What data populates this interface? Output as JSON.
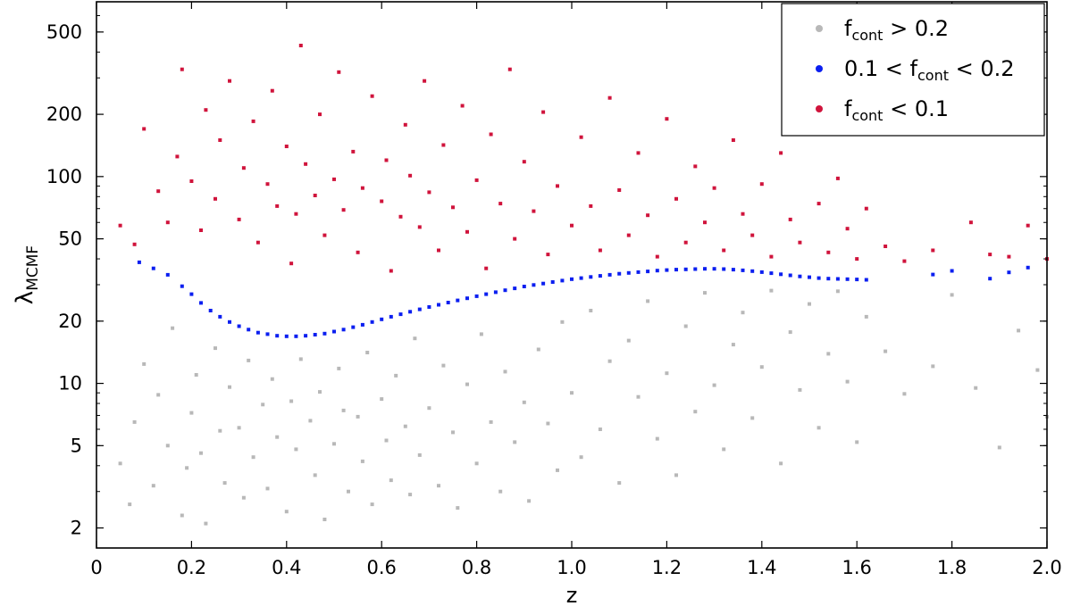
{
  "chart_data": {
    "type": "scatter",
    "xlabel": "z",
    "ylabel": {
      "base": "λ",
      "sub": "MCMF"
    },
    "xlim": [
      0.0,
      2.0
    ],
    "ylim": [
      1.6,
      700
    ],
    "yscale": "log",
    "x_ticks": [
      0.0,
      0.2,
      0.4,
      0.6,
      0.8,
      1.0,
      1.2,
      1.4,
      1.6,
      1.8,
      2.0
    ],
    "x_tick_labels": [
      "0",
      "0.2",
      "0.4",
      "0.6",
      "0.8",
      "1.0",
      "1.2",
      "1.4",
      "1.6",
      "1.8",
      "2.0"
    ],
    "y_ticks": [
      2,
      5,
      10,
      20,
      50,
      100,
      200,
      500
    ],
    "y_tick_labels": [
      "2",
      "5",
      "10",
      "20",
      "50",
      "100",
      "200",
      "500"
    ],
    "grid": false,
    "legend_position": "top-right",
    "series": [
      {
        "name": "f_cont > 0.2",
        "label_parts": {
          "pre": "f",
          "sub": "cont",
          "post": " > 0.2"
        },
        "color": "#b8b8b8",
        "points": [
          [
            0.05,
            4.1
          ],
          [
            0.07,
            2.6
          ],
          [
            0.08,
            6.5
          ],
          [
            0.1,
            12.4
          ],
          [
            0.12,
            3.2
          ],
          [
            0.13,
            8.8
          ],
          [
            0.15,
            5.0
          ],
          [
            0.16,
            18.5
          ],
          [
            0.18,
            2.3
          ],
          [
            0.19,
            3.9
          ],
          [
            0.2,
            7.2
          ],
          [
            0.21,
            11.0
          ],
          [
            0.22,
            4.6
          ],
          [
            0.23,
            2.1
          ],
          [
            0.25,
            14.8
          ],
          [
            0.26,
            5.9
          ],
          [
            0.27,
            3.3
          ],
          [
            0.28,
            9.6
          ],
          [
            0.3,
            6.1
          ],
          [
            0.31,
            2.8
          ],
          [
            0.32,
            12.9
          ],
          [
            0.33,
            4.4
          ],
          [
            0.35,
            7.9
          ],
          [
            0.36,
            3.1
          ],
          [
            0.37,
            10.5
          ],
          [
            0.38,
            5.5
          ],
          [
            0.4,
            2.4
          ],
          [
            0.41,
            8.2
          ],
          [
            0.42,
            4.8
          ],
          [
            0.43,
            13.1
          ],
          [
            0.45,
            6.6
          ],
          [
            0.46,
            3.6
          ],
          [
            0.47,
            9.1
          ],
          [
            0.48,
            2.2
          ],
          [
            0.5,
            5.1
          ],
          [
            0.51,
            11.8
          ],
          [
            0.52,
            7.4
          ],
          [
            0.53,
            3.0
          ],
          [
            0.55,
            6.9
          ],
          [
            0.56,
            4.2
          ],
          [
            0.57,
            14.1
          ],
          [
            0.58,
            2.6
          ],
          [
            0.6,
            8.4
          ],
          [
            0.61,
            5.3
          ],
          [
            0.62,
            3.4
          ],
          [
            0.63,
            10.9
          ],
          [
            0.65,
            6.2
          ],
          [
            0.66,
            2.9
          ],
          [
            0.67,
            16.5
          ],
          [
            0.68,
            4.5
          ],
          [
            0.7,
            7.6
          ],
          [
            0.72,
            3.2
          ],
          [
            0.73,
            12.2
          ],
          [
            0.75,
            5.8
          ],
          [
            0.76,
            2.5
          ],
          [
            0.78,
            9.9
          ],
          [
            0.8,
            4.1
          ],
          [
            0.81,
            17.3
          ],
          [
            0.83,
            6.5
          ],
          [
            0.85,
            3.0
          ],
          [
            0.86,
            11.4
          ],
          [
            0.88,
            5.2
          ],
          [
            0.9,
            8.1
          ],
          [
            0.91,
            2.7
          ],
          [
            0.93,
            14.6
          ],
          [
            0.95,
            6.4
          ],
          [
            0.97,
            3.8
          ],
          [
            0.98,
            19.8
          ],
          [
            1.0,
            9.0
          ],
          [
            1.02,
            4.4
          ],
          [
            1.04,
            22.5
          ],
          [
            1.06,
            6.0
          ],
          [
            1.08,
            12.8
          ],
          [
            1.1,
            3.3
          ],
          [
            1.12,
            16.1
          ],
          [
            1.14,
            8.6
          ],
          [
            1.16,
            25.0
          ],
          [
            1.18,
            5.4
          ],
          [
            1.2,
            11.2
          ],
          [
            1.22,
            3.6
          ],
          [
            1.24,
            18.9
          ],
          [
            1.26,
            7.3
          ],
          [
            1.28,
            27.4
          ],
          [
            1.3,
            9.8
          ],
          [
            1.32,
            4.8
          ],
          [
            1.34,
            15.4
          ],
          [
            1.36,
            22.0
          ],
          [
            1.38,
            6.8
          ],
          [
            1.4,
            12.0
          ],
          [
            1.42,
            28.1
          ],
          [
            1.44,
            4.1
          ],
          [
            1.46,
            17.7
          ],
          [
            1.48,
            9.3
          ],
          [
            1.5,
            24.2
          ],
          [
            1.52,
            6.1
          ],
          [
            1.54,
            13.9
          ],
          [
            1.56,
            27.9
          ],
          [
            1.58,
            10.2
          ],
          [
            1.6,
            5.2
          ],
          [
            1.62,
            21.0
          ],
          [
            1.66,
            14.3
          ],
          [
            1.7,
            8.9
          ],
          [
            1.76,
            12.1
          ],
          [
            1.8,
            26.8
          ],
          [
            1.85,
            9.5
          ],
          [
            1.9,
            4.9
          ],
          [
            1.94,
            18.0
          ],
          [
            1.98,
            11.6
          ],
          [
            2.0,
            6.9
          ]
        ]
      },
      {
        "name": "0.1 < f_cont < 0.2",
        "label_parts": {
          "pre": "0.1 < f",
          "sub": "cont",
          "post": " < 0.2"
        },
        "color": "#0b1ff0",
        "points": [
          [
            0.09,
            38.5
          ],
          [
            0.12,
            36.0
          ],
          [
            0.15,
            33.5
          ],
          [
            0.18,
            29.5
          ],
          [
            0.2,
            27.0
          ],
          [
            0.22,
            24.5
          ],
          [
            0.24,
            22.5
          ],
          [
            0.26,
            21.0
          ],
          [
            0.28,
            19.8
          ],
          [
            0.3,
            18.9
          ],
          [
            0.32,
            18.2
          ],
          [
            0.34,
            17.6
          ],
          [
            0.36,
            17.3
          ],
          [
            0.38,
            17.0
          ],
          [
            0.4,
            16.9
          ],
          [
            0.42,
            16.9
          ],
          [
            0.44,
            17.0
          ],
          [
            0.46,
            17.2
          ],
          [
            0.48,
            17.4
          ],
          [
            0.5,
            17.8
          ],
          [
            0.52,
            18.2
          ],
          [
            0.54,
            18.7
          ],
          [
            0.56,
            19.2
          ],
          [
            0.58,
            19.8
          ],
          [
            0.6,
            20.4
          ],
          [
            0.62,
            21.0
          ],
          [
            0.64,
            21.6
          ],
          [
            0.66,
            22.2
          ],
          [
            0.68,
            22.8
          ],
          [
            0.7,
            23.4
          ],
          [
            0.72,
            24.0
          ],
          [
            0.74,
            24.6
          ],
          [
            0.76,
            25.2
          ],
          [
            0.78,
            25.8
          ],
          [
            0.8,
            26.4
          ],
          [
            0.82,
            27.0
          ],
          [
            0.84,
            27.6
          ],
          [
            0.86,
            28.2
          ],
          [
            0.88,
            28.8
          ],
          [
            0.9,
            29.4
          ],
          [
            0.92,
            29.9
          ],
          [
            0.94,
            30.4
          ],
          [
            0.96,
            30.9
          ],
          [
            0.98,
            31.4
          ],
          [
            1.0,
            31.9
          ],
          [
            1.02,
            32.3
          ],
          [
            1.04,
            32.7
          ],
          [
            1.06,
            33.1
          ],
          [
            1.08,
            33.5
          ],
          [
            1.1,
            33.9
          ],
          [
            1.12,
            34.2
          ],
          [
            1.14,
            34.5
          ],
          [
            1.16,
            34.8
          ],
          [
            1.18,
            35.1
          ],
          [
            1.2,
            35.3
          ],
          [
            1.22,
            35.5
          ],
          [
            1.24,
            35.6
          ],
          [
            1.26,
            35.7
          ],
          [
            1.28,
            35.8
          ],
          [
            1.3,
            35.8
          ],
          [
            1.32,
            35.7
          ],
          [
            1.34,
            35.5
          ],
          [
            1.36,
            35.2
          ],
          [
            1.38,
            34.9
          ],
          [
            1.4,
            34.5
          ],
          [
            1.42,
            34.1
          ],
          [
            1.44,
            33.7
          ],
          [
            1.46,
            33.3
          ],
          [
            1.48,
            32.9
          ],
          [
            1.5,
            32.6
          ],
          [
            1.52,
            32.3
          ],
          [
            1.54,
            32.1
          ],
          [
            1.56,
            32.0
          ],
          [
            1.58,
            31.9
          ],
          [
            1.6,
            31.8
          ],
          [
            1.62,
            31.7
          ],
          [
            1.76,
            33.6
          ],
          [
            1.8,
            35.0
          ],
          [
            1.88,
            32.1
          ],
          [
            1.92,
            34.4
          ],
          [
            1.96,
            36.3
          ]
        ]
      },
      {
        "name": "f_cont < 0.1",
        "label_parts": {
          "pre": "f",
          "sub": "cont",
          "post": " < 0.1"
        },
        "color": "#d0143c",
        "points": [
          [
            0.05,
            58.0
          ],
          [
            0.08,
            47.0
          ],
          [
            0.1,
            170.0
          ],
          [
            0.13,
            85.0
          ],
          [
            0.15,
            60.0
          ],
          [
            0.17,
            125.0
          ],
          [
            0.18,
            330.0
          ],
          [
            0.2,
            95.0
          ],
          [
            0.22,
            55.0
          ],
          [
            0.23,
            210.0
          ],
          [
            0.25,
            78.0
          ],
          [
            0.26,
            150.0
          ],
          [
            0.28,
            290.0
          ],
          [
            0.3,
            62.0
          ],
          [
            0.31,
            110.0
          ],
          [
            0.33,
            185.0
          ],
          [
            0.34,
            48.0
          ],
          [
            0.36,
            92.0
          ],
          [
            0.37,
            260.0
          ],
          [
            0.38,
            72.0
          ],
          [
            0.4,
            140.0
          ],
          [
            0.41,
            38.0
          ],
          [
            0.42,
            66.0
          ],
          [
            0.43,
            430.0
          ],
          [
            0.44,
            115.0
          ],
          [
            0.46,
            81.0
          ],
          [
            0.47,
            200.0
          ],
          [
            0.48,
            52.0
          ],
          [
            0.5,
            97.0
          ],
          [
            0.51,
            320.0
          ],
          [
            0.52,
            69.0
          ],
          [
            0.54,
            132.0
          ],
          [
            0.55,
            43.0
          ],
          [
            0.56,
            88.0
          ],
          [
            0.58,
            245.0
          ],
          [
            0.6,
            76.0
          ],
          [
            0.61,
            120.0
          ],
          [
            0.62,
            35.0
          ],
          [
            0.64,
            64.0
          ],
          [
            0.65,
            178.0
          ],
          [
            0.66,
            101.0
          ],
          [
            0.68,
            57.0
          ],
          [
            0.69,
            290.0
          ],
          [
            0.7,
            84.0
          ],
          [
            0.72,
            44.0
          ],
          [
            0.73,
            142.0
          ],
          [
            0.75,
            71.0
          ],
          [
            0.77,
            220.0
          ],
          [
            0.78,
            54.0
          ],
          [
            0.8,
            96.0
          ],
          [
            0.82,
            36.0
          ],
          [
            0.83,
            160.0
          ],
          [
            0.85,
            74.0
          ],
          [
            0.87,
            330.0
          ],
          [
            0.88,
            50.0
          ],
          [
            0.9,
            118.0
          ],
          [
            0.92,
            68.0
          ],
          [
            0.94,
            205.0
          ],
          [
            0.95,
            42.0
          ],
          [
            0.97,
            90.0
          ],
          [
            1.0,
            58.0
          ],
          [
            1.02,
            155.0
          ],
          [
            1.04,
            72.0
          ],
          [
            1.06,
            44.0
          ],
          [
            1.08,
            240.0
          ],
          [
            1.1,
            86.0
          ],
          [
            1.12,
            52.0
          ],
          [
            1.14,
            130.0
          ],
          [
            1.16,
            65.0
          ],
          [
            1.18,
            41.0
          ],
          [
            1.2,
            190.0
          ],
          [
            1.22,
            78.0
          ],
          [
            1.24,
            48.0
          ],
          [
            1.26,
            112.0
          ],
          [
            1.28,
            60.0
          ],
          [
            1.3,
            88.0
          ],
          [
            1.32,
            44.0
          ],
          [
            1.34,
            150.0
          ],
          [
            1.36,
            66.0
          ],
          [
            1.38,
            52.0
          ],
          [
            1.4,
            92.0
          ],
          [
            1.42,
            41.0
          ],
          [
            1.44,
            130.0
          ],
          [
            1.46,
            62.0
          ],
          [
            1.48,
            48.0
          ],
          [
            1.5,
            190.0
          ],
          [
            1.52,
            74.0
          ],
          [
            1.54,
            43.0
          ],
          [
            1.56,
            98.0
          ],
          [
            1.58,
            56.0
          ],
          [
            1.6,
            40.0
          ],
          [
            1.62,
            70.0
          ],
          [
            1.66,
            46.0
          ],
          [
            1.7,
            39.0
          ],
          [
            1.76,
            44.0
          ],
          [
            1.84,
            60.0
          ],
          [
            1.88,
            42.0
          ],
          [
            1.92,
            41.0
          ],
          [
            1.96,
            58.0
          ],
          [
            2.0,
            40.0
          ]
        ]
      }
    ]
  }
}
